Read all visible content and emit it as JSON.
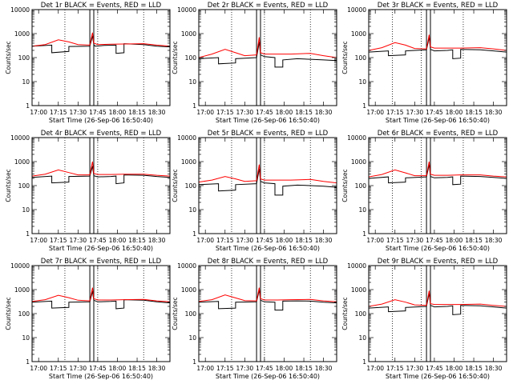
{
  "chart_data": [
    {
      "type": "line",
      "title": "Det 1r BLACK = Events, RED = LLD",
      "ylabel": "Counts/sec",
      "xlabel": "Start Time (26-Sep-06 16:50:40)",
      "yscale": "log",
      "ylim": [
        1,
        10000
      ],
      "xlim": [
        0,
        105
      ],
      "ytick_labels": [
        "1",
        "10",
        "100",
        "1000",
        "10000"
      ],
      "xtick_labels": [
        "17:00",
        "17:15",
        "17:30",
        "17:45",
        "18:00",
        "18:15",
        "18:30"
      ],
      "vlines_dotted": [
        25,
        50,
        85
      ],
      "vlines_solid": [
        44,
        47
      ],
      "series": [
        {
          "color": "#000000",
          "x": [
            0,
            15,
            15,
            28,
            28,
            44,
            46,
            47,
            48,
            55,
            64,
            64,
            70,
            70,
            85,
            95,
            105
          ],
          "y": [
            300,
            330,
            160,
            180,
            290,
            300,
            800,
            350,
            300,
            320,
            330,
            150,
            160,
            380,
            350,
            300,
            280
          ]
        },
        {
          "color": "#ff0000",
          "x": [
            0,
            10,
            20,
            28,
            35,
            44,
            46,
            47,
            50,
            60,
            70,
            85,
            95,
            105
          ],
          "y": [
            300,
            350,
            550,
            450,
            350,
            330,
            1100,
            400,
            350,
            360,
            370,
            380,
            330,
            300
          ]
        }
      ]
    },
    {
      "type": "line",
      "title": "Det 2r BLACK = Events, RED = LLD",
      "ylabel": "Counts/sec",
      "xlabel": "Start Time (26-Sep-06 16:50:40)",
      "yscale": "log",
      "ylim": [
        1,
        10000
      ],
      "xlim": [
        0,
        105
      ],
      "ytick_labels": [
        "1",
        "10",
        "100",
        "1000",
        "10000"
      ],
      "xtick_labels": [
        "17:00",
        "17:15",
        "17:30",
        "17:45",
        "18:00",
        "18:15",
        "18:30"
      ],
      "vlines_dotted": [
        25,
        50,
        85
      ],
      "vlines_solid": [
        44,
        47
      ],
      "series": [
        {
          "color": "#000000",
          "x": [
            0,
            15,
            15,
            28,
            28,
            44,
            46,
            47,
            50,
            58,
            58,
            64,
            64,
            75,
            85,
            95,
            105
          ],
          "y": [
            90,
            100,
            55,
            60,
            90,
            100,
            450,
            130,
            110,
            100,
            40,
            40,
            80,
            90,
            85,
            80,
            75
          ]
        },
        {
          "color": "#ff0000",
          "x": [
            0,
            10,
            20,
            28,
            35,
            44,
            46,
            47,
            50,
            60,
            70,
            85,
            95,
            105
          ],
          "y": [
            100,
            140,
            220,
            160,
            120,
            130,
            700,
            160,
            140,
            140,
            140,
            150,
            120,
            100
          ]
        }
      ]
    },
    {
      "type": "line",
      "title": "Det 3r BLACK = Events, RED = LLD",
      "ylabel": "Counts/sec",
      "xlabel": "Start Time (26-Sep-06 16:50:40)",
      "yscale": "log",
      "ylim": [
        1,
        10000
      ],
      "xlim": [
        0,
        105
      ],
      "ytick_labels": [
        "1",
        "10",
        "100",
        "1000",
        "10000"
      ],
      "xtick_labels": [
        "17:00",
        "17:15",
        "17:30",
        "17:45",
        "18:00",
        "18:15",
        "18:30"
      ],
      "vlines_dotted": [
        18,
        40,
        72
      ],
      "vlines_solid": [
        44,
        47
      ],
      "series": [
        {
          "color": "#000000",
          "x": [
            0,
            15,
            15,
            28,
            28,
            44,
            46,
            47,
            50,
            60,
            64,
            64,
            70,
            70,
            85,
            95,
            105
          ],
          "y": [
            170,
            190,
            120,
            130,
            190,
            210,
            700,
            220,
            190,
            200,
            210,
            90,
            95,
            220,
            210,
            190,
            170
          ]
        },
        {
          "color": "#ff0000",
          "x": [
            0,
            10,
            20,
            28,
            35,
            44,
            46,
            47,
            50,
            60,
            70,
            85,
            95,
            105
          ],
          "y": [
            200,
            260,
            420,
            330,
            240,
            230,
            900,
            280,
            250,
            250,
            250,
            260,
            230,
            200
          ]
        }
      ]
    },
    {
      "type": "line",
      "title": "Det 4r BLACK = Events, RED = LLD",
      "ylabel": "Counts/sec",
      "xlabel": "Start Time (26-Sep-06 16:50:40)",
      "yscale": "log",
      "ylim": [
        1,
        10000
      ],
      "xlim": [
        0,
        105
      ],
      "ytick_labels": [
        "1",
        "10",
        "100",
        "1000",
        "10000"
      ],
      "xtick_labels": [
        "17:00",
        "17:15",
        "17:30",
        "17:45",
        "18:00",
        "18:15",
        "18:30"
      ],
      "vlines_dotted": [
        25,
        50,
        85
      ],
      "vlines_solid": [
        44,
        47
      ],
      "series": [
        {
          "color": "#000000",
          "x": [
            0,
            15,
            15,
            28,
            28,
            44,
            46,
            47,
            50,
            60,
            64,
            64,
            70,
            70,
            85,
            95,
            105
          ],
          "y": [
            220,
            250,
            130,
            140,
            240,
            250,
            650,
            260,
            230,
            240,
            250,
            120,
            130,
            280,
            270,
            240,
            220
          ]
        },
        {
          "color": "#ff0000",
          "x": [
            0,
            10,
            20,
            28,
            35,
            44,
            46,
            47,
            50,
            60,
            70,
            85,
            95,
            105
          ],
          "y": [
            250,
            300,
            450,
            350,
            280,
            280,
            1000,
            320,
            290,
            290,
            300,
            300,
            270,
            250
          ]
        }
      ]
    },
    {
      "type": "line",
      "title": "Det 5r BLACK = Events, RED = LLD",
      "ylabel": "Counts/sec",
      "xlabel": "Start Time (26-Sep-06 16:50:40)",
      "yscale": "log",
      "ylim": [
        1,
        10000
      ],
      "xlim": [
        0,
        105
      ],
      "ytick_labels": [
        "1",
        "10",
        "100",
        "1000",
        "10000"
      ],
      "xtick_labels": [
        "17:00",
        "17:15",
        "17:30",
        "17:45",
        "18:00",
        "18:15",
        "18:30"
      ],
      "vlines_dotted": [
        25,
        50,
        85
      ],
      "vlines_solid": [
        44,
        47
      ],
      "series": [
        {
          "color": "#000000",
          "x": [
            0,
            15,
            15,
            28,
            28,
            44,
            46,
            47,
            50,
            58,
            58,
            64,
            64,
            75,
            85,
            95,
            105
          ],
          "y": [
            110,
            120,
            60,
            65,
            110,
            120,
            500,
            150,
            130,
            120,
            40,
            40,
            95,
            105,
            100,
            95,
            85
          ]
        },
        {
          "color": "#ff0000",
          "x": [
            0,
            10,
            20,
            28,
            35,
            44,
            46,
            47,
            50,
            60,
            70,
            85,
            95,
            105
          ],
          "y": [
            140,
            170,
            240,
            190,
            150,
            160,
            750,
            190,
            170,
            170,
            170,
            180,
            150,
            130
          ]
        }
      ]
    },
    {
      "type": "line",
      "title": "Det 6r BLACK = Events, RED = LLD",
      "ylabel": "Counts/sec",
      "xlabel": "Start Time (26-Sep-06 16:50:40)",
      "yscale": "log",
      "ylim": [
        1,
        10000
      ],
      "xlim": [
        0,
        105
      ],
      "ytick_labels": [
        "1",
        "10",
        "100",
        "1000",
        "10000"
      ],
      "xtick_labels": [
        "17:00",
        "17:15",
        "17:30",
        "17:45",
        "18:00",
        "18:15",
        "18:30"
      ],
      "vlines_dotted": [
        18,
        40,
        72
      ],
      "vlines_solid": [
        44,
        47
      ],
      "series": [
        {
          "color": "#000000",
          "x": [
            0,
            15,
            15,
            28,
            28,
            44,
            46,
            47,
            50,
            60,
            64,
            64,
            70,
            70,
            85,
            95,
            105
          ],
          "y": [
            200,
            230,
            130,
            140,
            210,
            230,
            750,
            240,
            210,
            220,
            230,
            110,
            115,
            250,
            240,
            220,
            200
          ]
        },
        {
          "color": "#ff0000",
          "x": [
            0,
            10,
            20,
            28,
            35,
            44,
            46,
            47,
            50,
            60,
            70,
            85,
            95,
            105
          ],
          "y": [
            230,
            290,
            450,
            340,
            260,
            260,
            1000,
            300,
            270,
            270,
            280,
            280,
            250,
            230
          ]
        }
      ]
    },
    {
      "type": "line",
      "title": "Det 7r BLACK = Events, RED = LLD",
      "ylabel": "Counts/sec",
      "xlabel": "Start Time (26-Sep-06 16:50:40)",
      "yscale": "log",
      "ylim": [
        1,
        10000
      ],
      "xlim": [
        0,
        105
      ],
      "ytick_labels": [
        "1",
        "10",
        "100",
        "1000",
        "10000"
      ],
      "xtick_labels": [
        "17:00",
        "17:15",
        "17:30",
        "17:45",
        "18:00",
        "18:15",
        "18:30"
      ],
      "vlines_dotted": [
        25,
        50,
        85
      ],
      "vlines_solid": [
        44,
        47
      ],
      "series": [
        {
          "color": "#000000",
          "x": [
            0,
            15,
            15,
            28,
            28,
            44,
            46,
            47,
            50,
            60,
            64,
            64,
            70,
            70,
            85,
            95,
            105
          ],
          "y": [
            300,
            330,
            170,
            180,
            300,
            310,
            850,
            360,
            310,
            320,
            330,
            160,
            170,
            380,
            360,
            310,
            280
          ]
        },
        {
          "color": "#ff0000",
          "x": [
            0,
            10,
            20,
            28,
            35,
            44,
            46,
            47,
            50,
            60,
            70,
            85,
            95,
            105
          ],
          "y": [
            320,
            380,
            580,
            460,
            360,
            340,
            1200,
            420,
            370,
            370,
            380,
            390,
            340,
            310
          ]
        }
      ]
    },
    {
      "type": "line",
      "title": "Det 8r BLACK = Events, RED = LLD",
      "ylabel": "Counts/sec",
      "xlabel": "Start Time (26-Sep-06 16:50:40)",
      "yscale": "log",
      "ylim": [
        1,
        10000
      ],
      "xlim": [
        0,
        105
      ],
      "ytick_labels": [
        "1",
        "10",
        "100",
        "1000",
        "10000"
      ],
      "xtick_labels": [
        "17:00",
        "17:15",
        "17:30",
        "17:45",
        "18:00",
        "18:15",
        "18:30"
      ],
      "vlines_dotted": [
        25,
        50,
        85
      ],
      "vlines_solid": [
        44,
        47
      ],
      "series": [
        {
          "color": "#000000",
          "x": [
            0,
            15,
            15,
            28,
            28,
            44,
            46,
            47,
            50,
            58,
            58,
            64,
            64,
            75,
            85,
            95,
            105
          ],
          "y": [
            300,
            320,
            160,
            170,
            300,
            310,
            950,
            360,
            310,
            300,
            140,
            140,
            330,
            340,
            330,
            300,
            280
          ]
        },
        {
          "color": "#ff0000",
          "x": [
            0,
            10,
            20,
            28,
            35,
            44,
            46,
            47,
            50,
            60,
            70,
            85,
            95,
            105
          ],
          "y": [
            320,
            380,
            600,
            450,
            350,
            340,
            1200,
            420,
            370,
            370,
            380,
            390,
            340,
            310
          ]
        }
      ]
    },
    {
      "type": "line",
      "title": "Det 9r BLACK = Events, RED = LLD",
      "ylabel": "Counts/sec",
      "xlabel": "Start Time (26-Sep-06 16:50:40)",
      "yscale": "log",
      "ylim": [
        1,
        10000
      ],
      "xlim": [
        0,
        105
      ],
      "ytick_labels": [
        "1",
        "10",
        "100",
        "1000",
        "10000"
      ],
      "xtick_labels": [
        "17:00",
        "17:15",
        "17:30",
        "17:45",
        "18:00",
        "18:15",
        "18:30"
      ],
      "vlines_dotted": [
        18,
        40,
        72
      ],
      "vlines_solid": [
        44,
        47
      ],
      "series": [
        {
          "color": "#000000",
          "x": [
            0,
            15,
            15,
            28,
            28,
            44,
            46,
            47,
            50,
            60,
            64,
            64,
            70,
            70,
            85,
            95,
            105
          ],
          "y": [
            170,
            190,
            120,
            130,
            180,
            200,
            700,
            220,
            190,
            200,
            210,
            90,
            95,
            220,
            210,
            190,
            170
          ]
        },
        {
          "color": "#ff0000",
          "x": [
            0,
            10,
            20,
            28,
            35,
            44,
            46,
            47,
            50,
            60,
            70,
            85,
            95,
            105
          ],
          "y": [
            200,
            250,
            380,
            300,
            230,
            220,
            900,
            260,
            240,
            240,
            240,
            250,
            220,
            200
          ]
        }
      ]
    }
  ]
}
